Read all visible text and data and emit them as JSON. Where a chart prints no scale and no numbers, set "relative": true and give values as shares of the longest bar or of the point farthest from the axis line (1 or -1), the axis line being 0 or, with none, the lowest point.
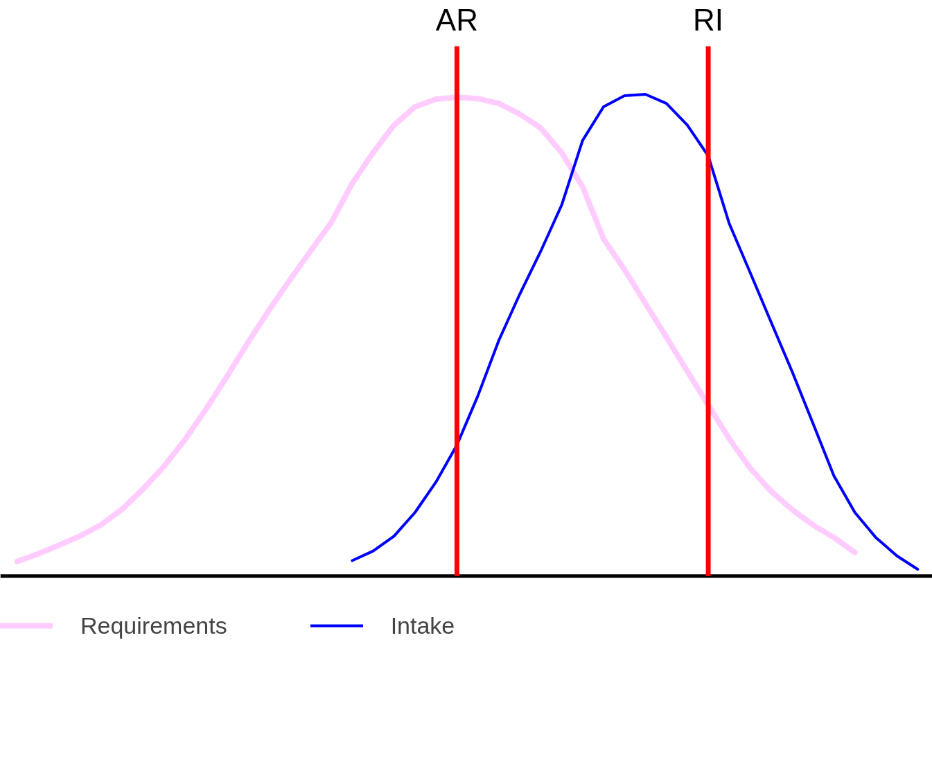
{
  "chart_data": {
    "type": "line",
    "relative": true,
    "categories": [
      null,
      null,
      null,
      null,
      null,
      null,
      null,
      null,
      null,
      null,
      null,
      null,
      null,
      null,
      null,
      null,
      null,
      null,
      null,
      null,
      null,
      "AR",
      null,
      null,
      null,
      null,
      null,
      null,
      null,
      null,
      null,
      null,
      null,
      "RI",
      null,
      null,
      null,
      null,
      null,
      null,
      null,
      null,
      null,
      null
    ],
    "series": [
      {
        "name": "Requirements",
        "color": "#ffccff",
        "values": [
          0.03,
          0.046,
          0.064,
          0.083,
          0.106,
          0.138,
          0.18,
          0.227,
          0.282,
          0.345,
          0.413,
          0.483,
          0.55,
          0.613,
          0.674,
          0.734,
          0.815,
          0.879,
          0.936,
          0.974,
          0.99,
          0.994,
          0.991,
          0.981,
          0.959,
          0.93,
          0.879,
          0.808,
          0.7,
          0.636,
          0.566,
          0.496,
          0.425,
          0.355,
          0.285,
          0.224,
          0.176,
          0.138,
          0.106,
          0.08,
          0.049,
          null,
          null,
          null
        ]
      },
      {
        "name": "Intake",
        "color": "#0000ff",
        "values": [
          null,
          null,
          null,
          null,
          null,
          null,
          null,
          null,
          null,
          null,
          null,
          null,
          null,
          null,
          null,
          null,
          0.032,
          0.052,
          0.083,
          0.132,
          0.195,
          0.272,
          0.374,
          0.489,
          0.585,
          0.674,
          0.77,
          0.904,
          0.974,
          0.997,
          1,
          0.981,
          0.936,
          0.872,
          0.732,
          0.63,
          0.527,
          0.425,
          0.317,
          0.208,
          0.132,
          0.08,
          0.042,
          0.014
        ]
      }
    ],
    "ref_lines": [
      {
        "axis": "x",
        "value": "AR",
        "color": "#ff0000"
      },
      {
        "axis": "x",
        "value": "RI",
        "color": "#ff0000"
      }
    ],
    "legend": "bottom left",
    "grid": false,
    "tick_labels": "x",
    "line_style": "solid",
    "marker": "none"
  }
}
